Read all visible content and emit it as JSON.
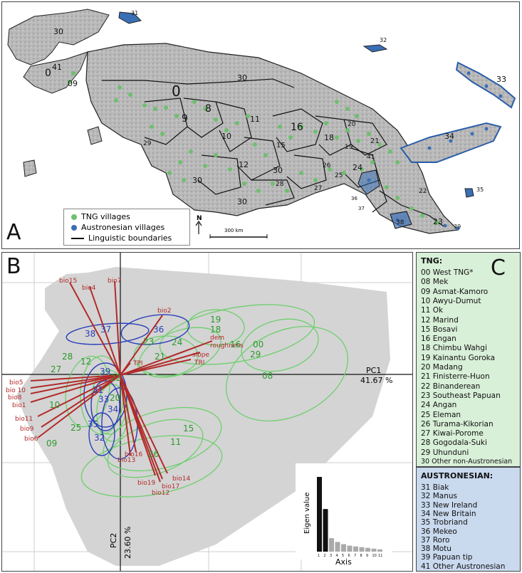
{
  "panel_a": {
    "letter": "A",
    "legend": {
      "tng": "TNG villages",
      "austronesian": "Austronesian villages",
      "boundaries": "Linguistic boundaries"
    },
    "north": "N",
    "scale": "300 km",
    "map_labels": [
      "30",
      "31",
      "0",
      "41",
      "09",
      "30",
      "0",
      "9",
      "8",
      "11",
      "16",
      "18",
      "19",
      "20",
      "21",
      "29",
      "10",
      "15",
      "30",
      "12",
      "26",
      "24",
      "41",
      "30",
      "25",
      "30",
      "28",
      "27",
      "36",
      "37",
      "38",
      "22",
      "23",
      "39",
      "32",
      "33",
      "34",
      "35"
    ]
  },
  "panel_b": {
    "letter": "B",
    "pc1_label": "PC1",
    "pc1_value": "41.67 %",
    "pc2_label": "PC2",
    "pc2_value": "23.60 %",
    "vectors": [
      "bio15",
      "bio4",
      "bio7",
      "bio2",
      "dem",
      "roughness",
      "slope",
      "TRI",
      "TPI",
      "bio5",
      "bio 10",
      "bio8",
      "bio1",
      "bio11",
      "bio9",
      "bio6",
      "bio16",
      "bio13",
      "bio19",
      "bio14",
      "bio17",
      "bio12"
    ],
    "group_labels": [
      "19",
      "18",
      "16",
      "00",
      "29",
      "08",
      "23",
      "24",
      "21",
      "36",
      "37",
      "38",
      "28",
      "12",
      "27",
      "39",
      "22",
      "31",
      "33",
      "20",
      "34",
      "10",
      "35",
      "25",
      "09",
      "32",
      "15",
      "11",
      "26"
    ],
    "inset": {
      "ylabel": "Eigen value",
      "xlabel": "Axis",
      "ticks": [
        "1",
        "2",
        "3",
        "4",
        "5",
        "6",
        "7",
        "8",
        "9",
        "10",
        "11"
      ]
    }
  },
  "chart_data": {
    "type": "bar",
    "title": "",
    "xlabel": "Axis",
    "ylabel": "Eigen value",
    "categories": [
      "1",
      "2",
      "3",
      "4",
      "5",
      "6",
      "7",
      "8",
      "9",
      "10",
      "11"
    ],
    "values": [
      1.0,
      0.57,
      0.18,
      0.13,
      0.1,
      0.08,
      0.07,
      0.06,
      0.05,
      0.04,
      0.03
    ]
  },
  "panel_c": {
    "letter": "C",
    "tng_header": "TNG:",
    "tng_items": [
      "00 West TNG*",
      "08 Mek",
      "09 Asmat-Kamoro",
      "10 Awyu-Dumut",
      "11 Ok",
      "12 Marind",
      "15 Bosavi",
      "16 Engan",
      "18 Chimbu Wahgi",
      "19 Kainantu Goroka",
      "20 Madang",
      "21 Finisterre-Huon",
      "22 Binanderean",
      "23 Southeast Papuan",
      "24 Angan",
      "25 Eleman",
      "26 Turama-Kikorian",
      "27 Kiwai-Porome",
      "28 Gogodala-Suki",
      "29 Uhunduni",
      "30 Other non-Austronesian"
    ],
    "aus_header": "AUSTRONESIAN:",
    "aus_items": [
      "31 Biak",
      "32 Manus",
      "33 New Ireland",
      "34 New Britain",
      "35 Trobriand",
      "36 Mekeo",
      "37 Roro",
      "38 Motu",
      "39 Papuan tip",
      "41 Other Austronesian"
    ]
  },
  "colors": {
    "tng": "#6ebf6e",
    "austronesian": "#3a6fb5",
    "vector": "#b22a2a",
    "tng_ellipse": "#6ccf6c",
    "aus_ellipse": "#2b3fb8",
    "land": "#b8b8b8",
    "panel_c_tng_bg": "#d8efd8",
    "panel_c_aus_bg": "#c9d9ee"
  }
}
